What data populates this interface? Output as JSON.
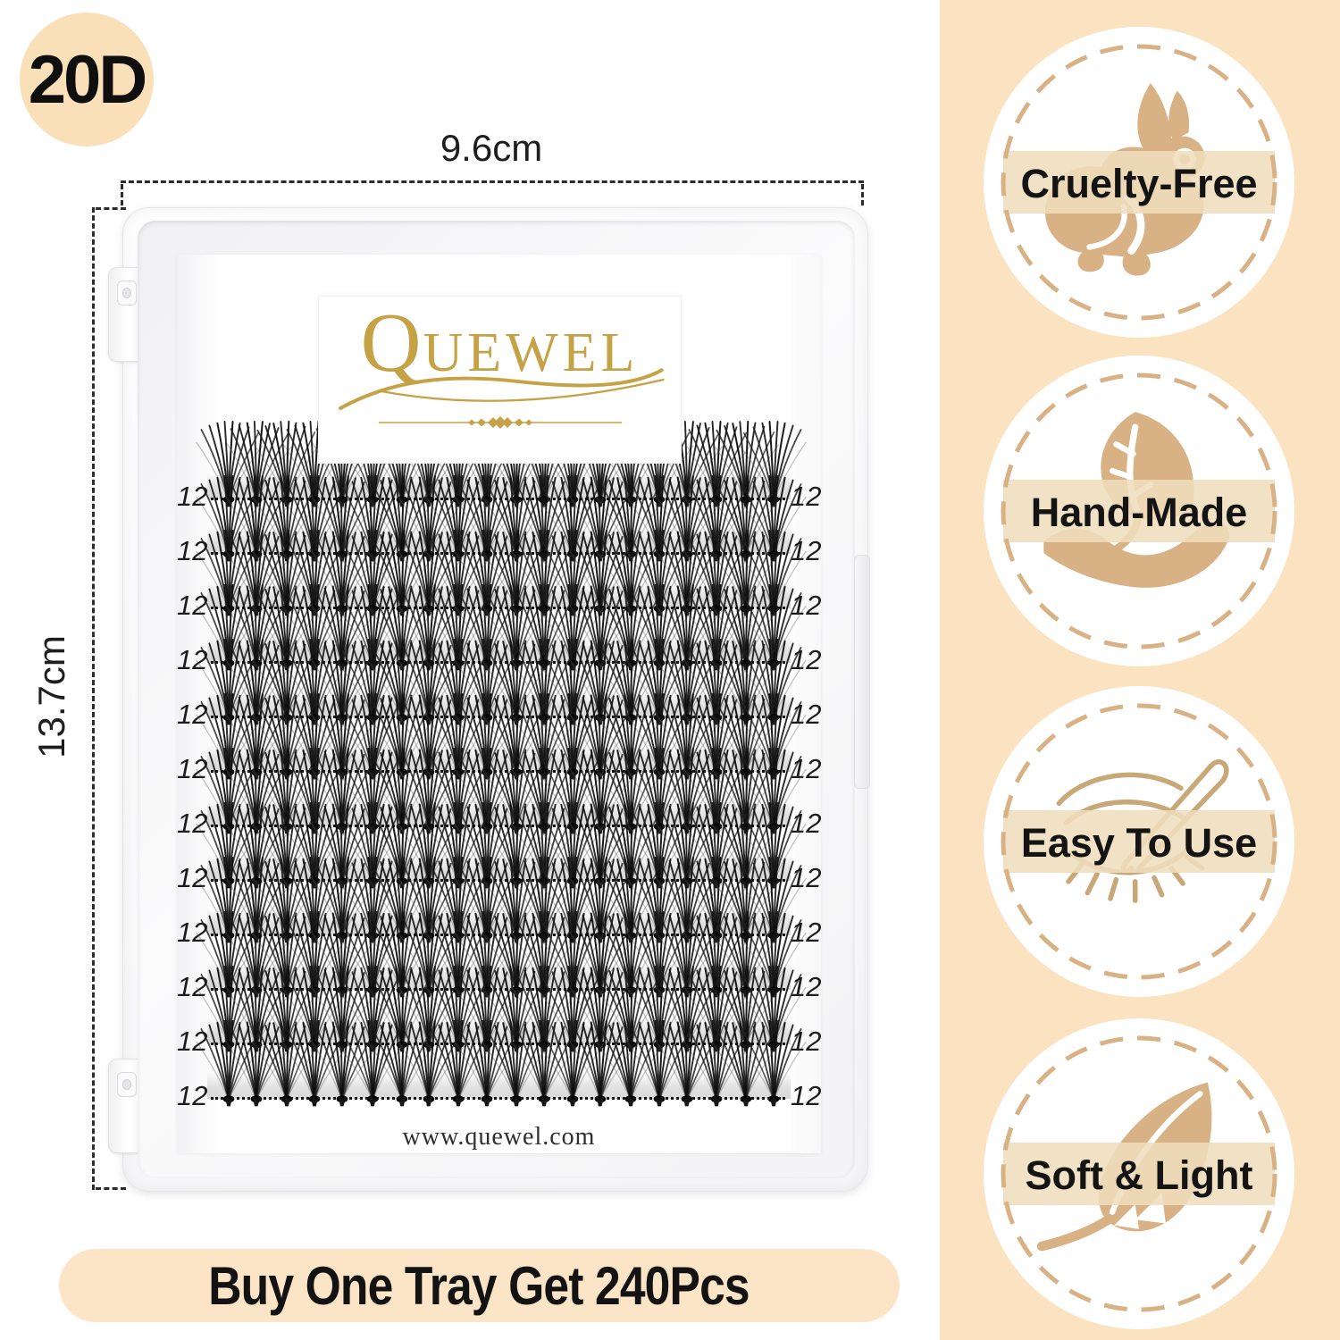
{
  "density_badge": {
    "label": "20D"
  },
  "dimensions": {
    "width_label": "9.6cm",
    "height_label": "13.7cm"
  },
  "tray": {
    "brand": {
      "initial": "Q",
      "rest": "UEWEL",
      "full": "QUEWEL"
    },
    "website": "www.quewel.com",
    "row_count": 12,
    "clusters_per_row": 20,
    "rows": [
      {
        "left_label": "12",
        "right_label": "12",
        "clusters": 20
      },
      {
        "left_label": "12",
        "right_label": "12",
        "clusters": 20
      },
      {
        "left_label": "12",
        "right_label": "12",
        "clusters": 20
      },
      {
        "left_label": "12",
        "right_label": "12",
        "clusters": 20
      },
      {
        "left_label": "12",
        "right_label": "12",
        "clusters": 20
      },
      {
        "left_label": "12",
        "right_label": "12",
        "clusters": 20
      },
      {
        "left_label": "12",
        "right_label": "12",
        "clusters": 20
      },
      {
        "left_label": "12",
        "right_label": "12",
        "clusters": 20
      },
      {
        "left_label": "12",
        "right_label": "12",
        "clusters": 20
      },
      {
        "left_label": "12",
        "right_label": "12",
        "clusters": 20
      },
      {
        "left_label": "12",
        "right_label": "12",
        "clusters": 20
      },
      {
        "left_label": "12",
        "right_label": "12",
        "clusters": 20
      }
    ]
  },
  "features": [
    {
      "label": "Cruelty-Free",
      "icon": "rabbit-icon"
    },
    {
      "label": "Hand-Made",
      "icon": "hand-leaf-icon"
    },
    {
      "label": "Easy To Use",
      "icon": "eye-tweezers-icon"
    },
    {
      "label": "Soft & Light",
      "icon": "feather-icon"
    }
  ],
  "banner": {
    "text": "Buy One Tray Get 240Pcs"
  },
  "colors": {
    "sidebar_bg": "#FBE3C2",
    "badge_circle_bg": "#FAE0B9",
    "banner_bg": "#FCE4C6",
    "tan": "#D8B184",
    "tan_light": "#EFDDBD",
    "tan_stroke": "#C9A878",
    "gold": "#C6A247",
    "ink": "#1B1B1B"
  }
}
